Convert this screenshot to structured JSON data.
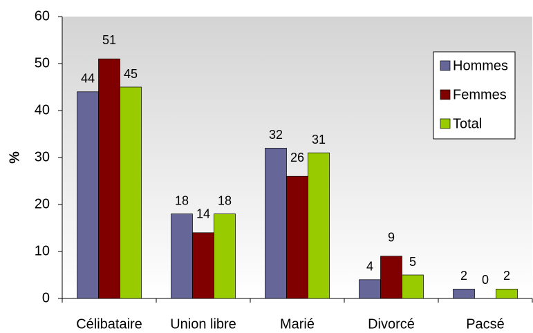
{
  "chart_data": {
    "type": "bar",
    "y_label": "%",
    "categories": [
      "Célibataire",
      "Union libre",
      "Marié",
      "Divorcé",
      "Pacsé"
    ],
    "series": [
      {
        "name": "Hommes",
        "color": "#666699",
        "values": [
          44,
          18,
          32,
          4,
          2
        ]
      },
      {
        "name": "Femmes",
        "color": "#800000",
        "values": [
          51,
          14,
          26,
          9,
          0
        ]
      },
      {
        "name": "Total",
        "color": "#99cc00",
        "values": [
          45,
          18,
          31,
          5,
          2
        ]
      }
    ],
    "ylim": [
      0,
      60
    ],
    "yticks": [
      0,
      10,
      20,
      30,
      40,
      50,
      60
    ],
    "grid": false,
    "legend": "upper right"
  }
}
